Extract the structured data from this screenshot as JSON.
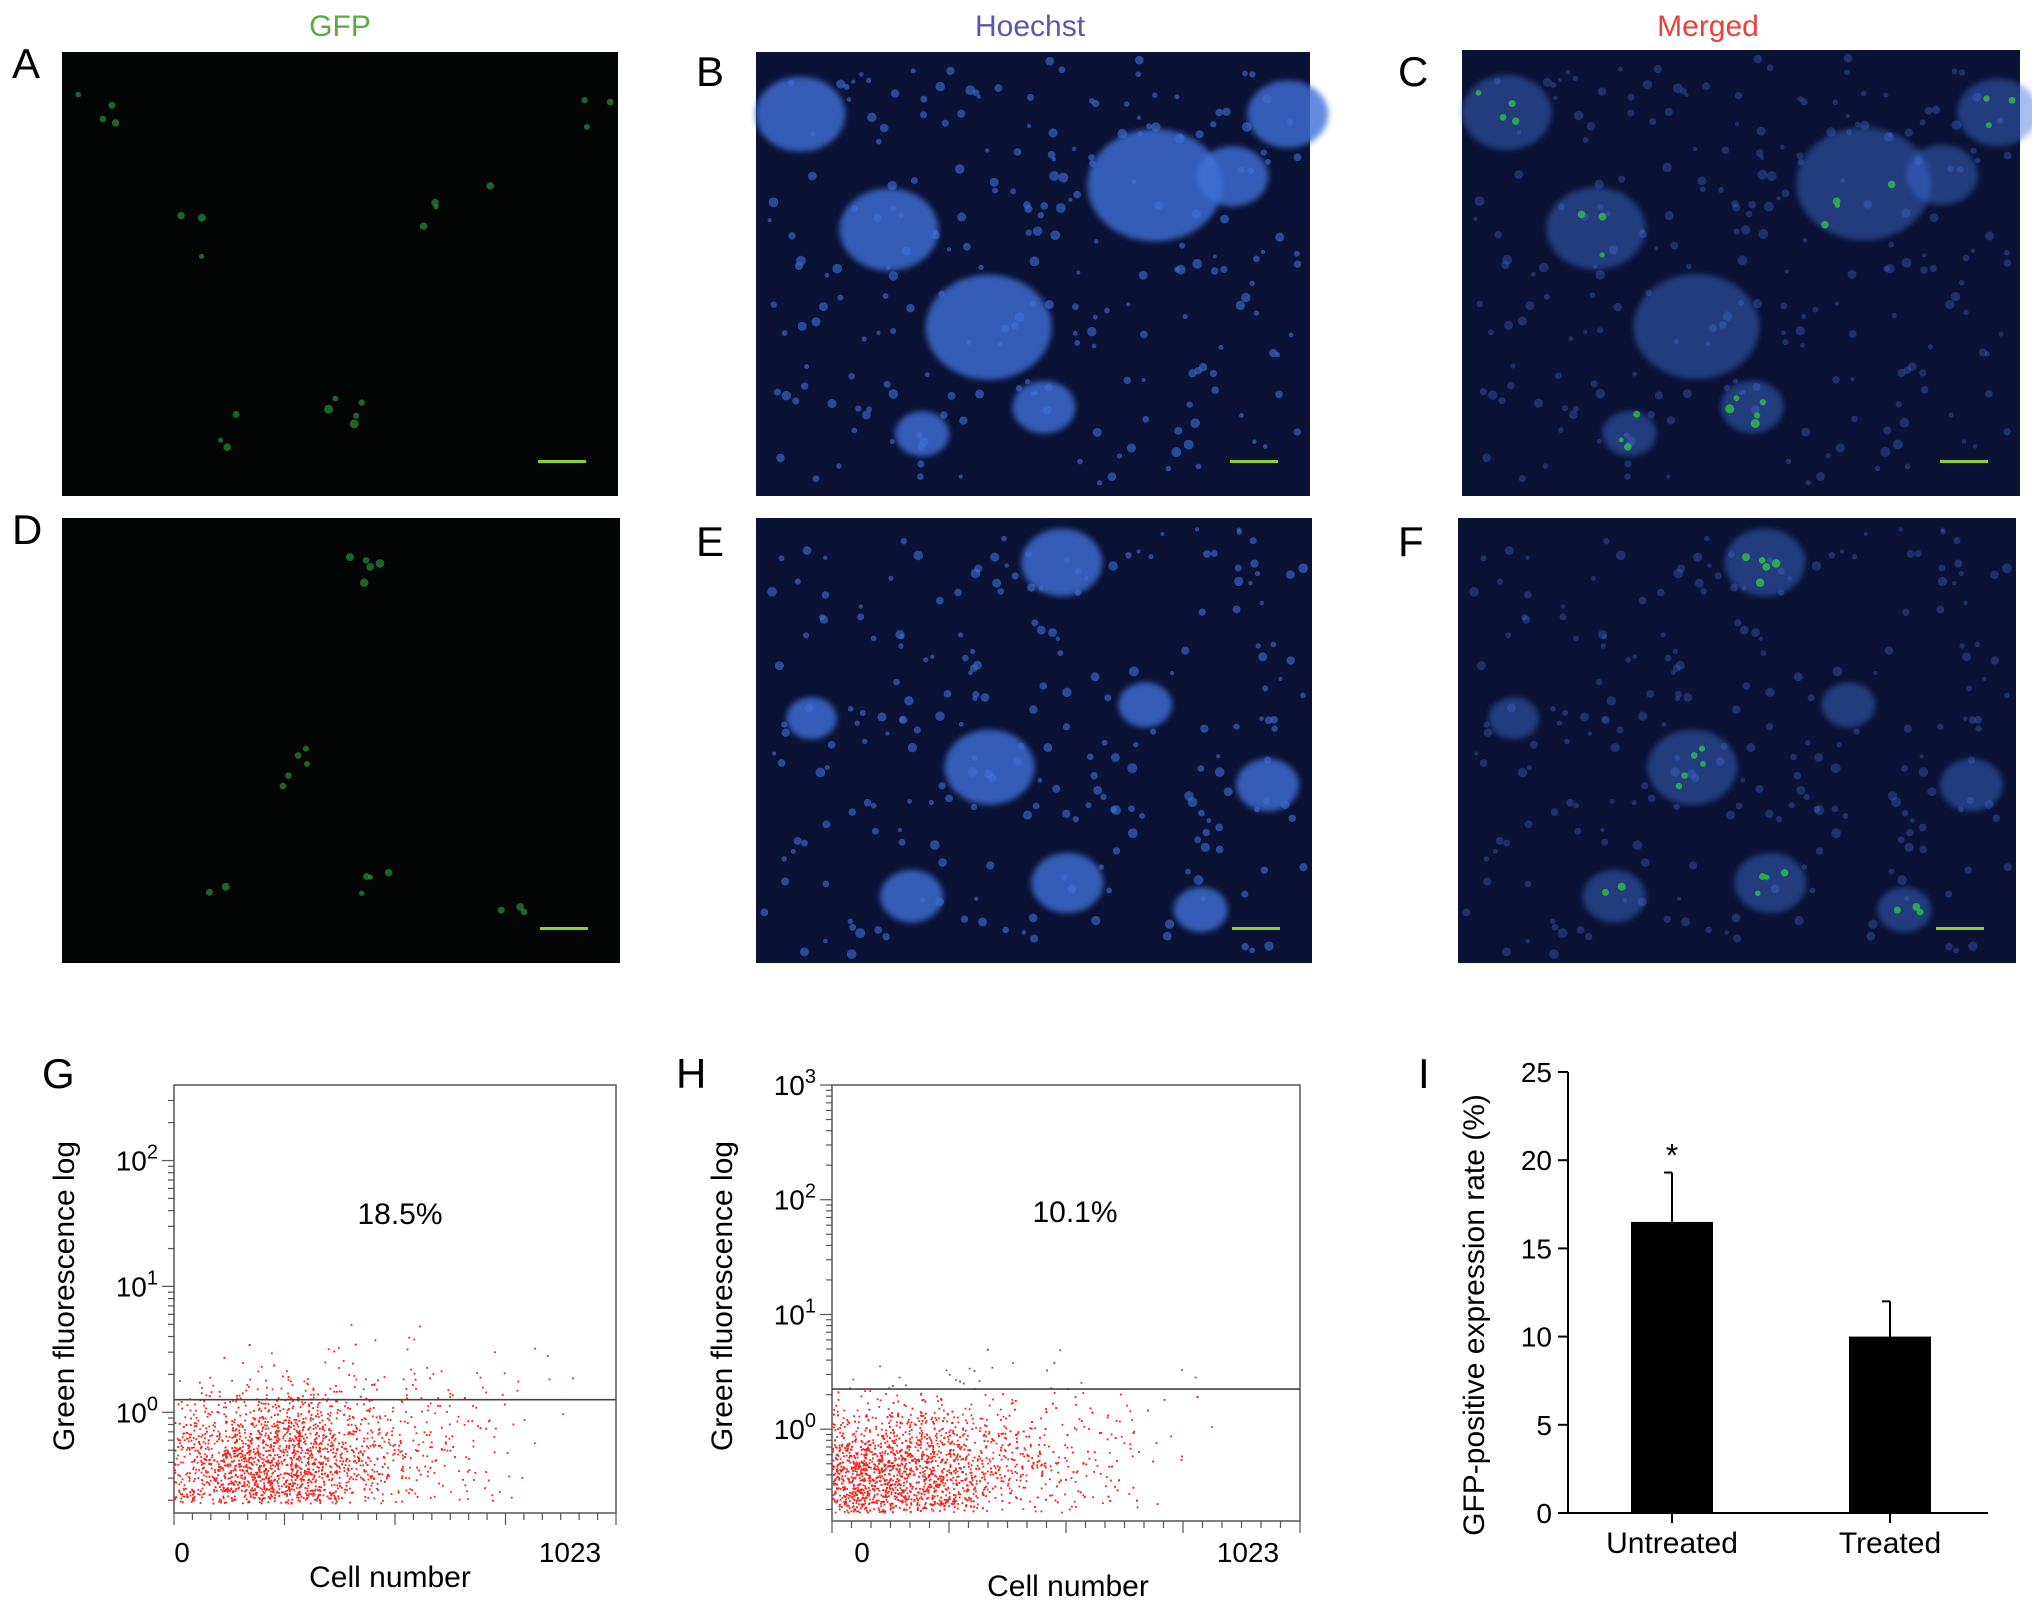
{
  "figure": {
    "columns": [
      {
        "label": "GFP",
        "color": "#5aad3c"
      },
      {
        "label": "Hoechst",
        "color": "#5b56b2"
      },
      {
        "label": "Merged",
        "color": "#e8423a"
      }
    ],
    "panels": [
      {
        "letter": "A",
        "channel": "GFP",
        "row": 1
      },
      {
        "letter": "B",
        "channel": "Hoechst",
        "row": 1
      },
      {
        "letter": "C",
        "channel": "Merged",
        "row": 1
      },
      {
        "letter": "D",
        "channel": "GFP",
        "row": 2
      },
      {
        "letter": "E",
        "channel": "Hoechst",
        "row": 2
      },
      {
        "letter": "F",
        "channel": "Merged",
        "row": 2
      }
    ],
    "colors": {
      "gfp_bg": "#030604",
      "gfp_cell": "#2fb24a",
      "nuclei_bg": "#0a1235",
      "nuclei_cell": "#3f6fd8",
      "scale_bar": "#8fd12a",
      "flow_dot": "#f0201a",
      "flow_dot_positive": "#5a5ab8",
      "bar_fill": "#000000"
    }
  },
  "chart_data": [
    {
      "panel": "G",
      "type": "scatter",
      "title": "",
      "xlabel": "Cell number",
      "ylabel": "Green fluorescence log",
      "x_ticks": [
        "0",
        "1023"
      ],
      "xlim": [
        0,
        1023
      ],
      "y_ticks": [
        "10^0",
        "10^1",
        "10^2"
      ],
      "y_scale": "log",
      "ylim_log10": [
        -0.8,
        2.6
      ],
      "gate_log10": 0.1,
      "annotation": "18.5%",
      "cluster": {
        "center_x": 200,
        "center_log10": -0.55
      }
    },
    {
      "panel": "H",
      "type": "scatter",
      "title": "",
      "xlabel": "Cell number",
      "ylabel": "Green fluorescence log",
      "x_ticks": [
        "0",
        "1023"
      ],
      "xlim": [
        0,
        1023
      ],
      "y_ticks": [
        "10^0",
        "10^1",
        "10^2",
        "10^3"
      ],
      "y_scale": "log",
      "ylim_log10": [
        -0.8,
        3.0
      ],
      "gate_log10": 0.35,
      "annotation": "10.1%",
      "cluster": {
        "center_x": 130,
        "center_log10": -0.5
      }
    },
    {
      "panel": "I",
      "type": "bar",
      "title": "",
      "xlabel": "",
      "ylabel": "GFP-positive expression rate (%)",
      "categories": [
        "Untreated",
        "Treated"
      ],
      "values": [
        16.5,
        10.0
      ],
      "errors": [
        2.8,
        2.0
      ],
      "significance": [
        "*",
        ""
      ],
      "ylim": [
        0,
        25
      ],
      "y_ticks": [
        0,
        5,
        10,
        15,
        20,
        25
      ]
    }
  ]
}
